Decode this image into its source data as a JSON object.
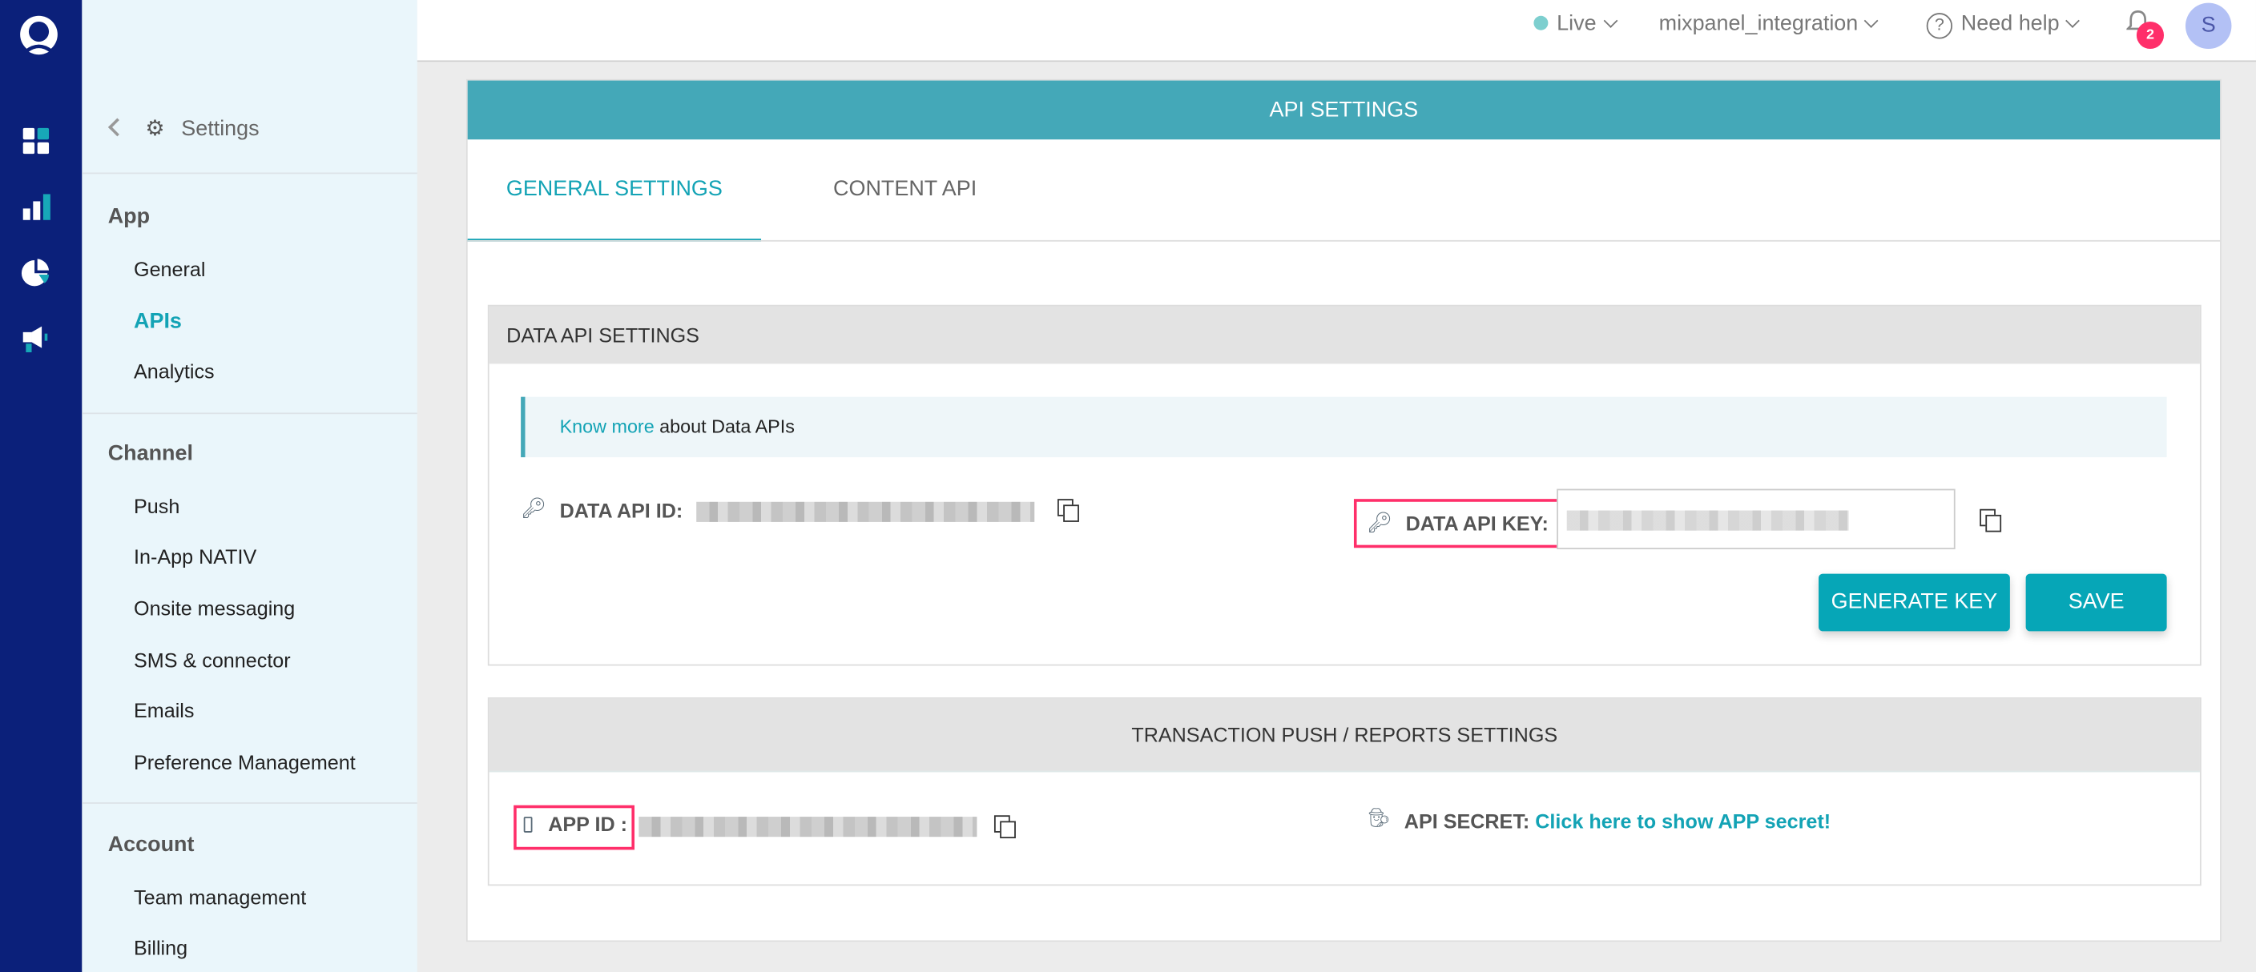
{
  "rail": {
    "icons": [
      "logo-icon",
      "dashboard-icon",
      "analytics-icon",
      "segments-pie-icon",
      "campaigns-megaphone-icon"
    ]
  },
  "sidebar": {
    "back_label": "Settings",
    "groups": [
      {
        "label": "App",
        "items": [
          "General",
          "APIs",
          "Analytics"
        ]
      },
      {
        "label": "Channel",
        "items": [
          "Push",
          "In-App NATIV",
          "Onsite messaging",
          "SMS & connector",
          "Emails",
          "Preference Management"
        ]
      },
      {
        "label": "Account",
        "items": [
          "Team management",
          "Billing"
        ]
      }
    ],
    "active": "APIs"
  },
  "topbar": {
    "env": "Live",
    "app": "mixpanel_integration",
    "help": "Need help",
    "notifications": "2",
    "avatar": "S",
    "env_color": "#7dcfcf"
  },
  "card": {
    "title": "API SETTINGS",
    "tabs": [
      "GENERAL SETTINGS",
      "CONTENT API"
    ],
    "active_tab": "GENERAL SETTINGS",
    "data_api": {
      "title": "DATA API SETTINGS",
      "info_link": "Know more",
      "info_text": " about Data APIs",
      "id_label": "DATA API ID:",
      "key_label": "DATA API KEY:",
      "generate": "GENERATE KEY",
      "save": "SAVE"
    },
    "transaction": {
      "title": "TRANSACTION PUSH / REPORTS SETTINGS",
      "app_id_label": "APP ID :",
      "secret_label": "API SECRET:",
      "secret_link": "Click here to show APP secret!"
    }
  },
  "colors": {
    "rail": "#0b207a",
    "accent": "#06a6b7",
    "header": "#44a8b8",
    "highlight": "#ff2f6a",
    "badge": "#ff2f6a"
  }
}
